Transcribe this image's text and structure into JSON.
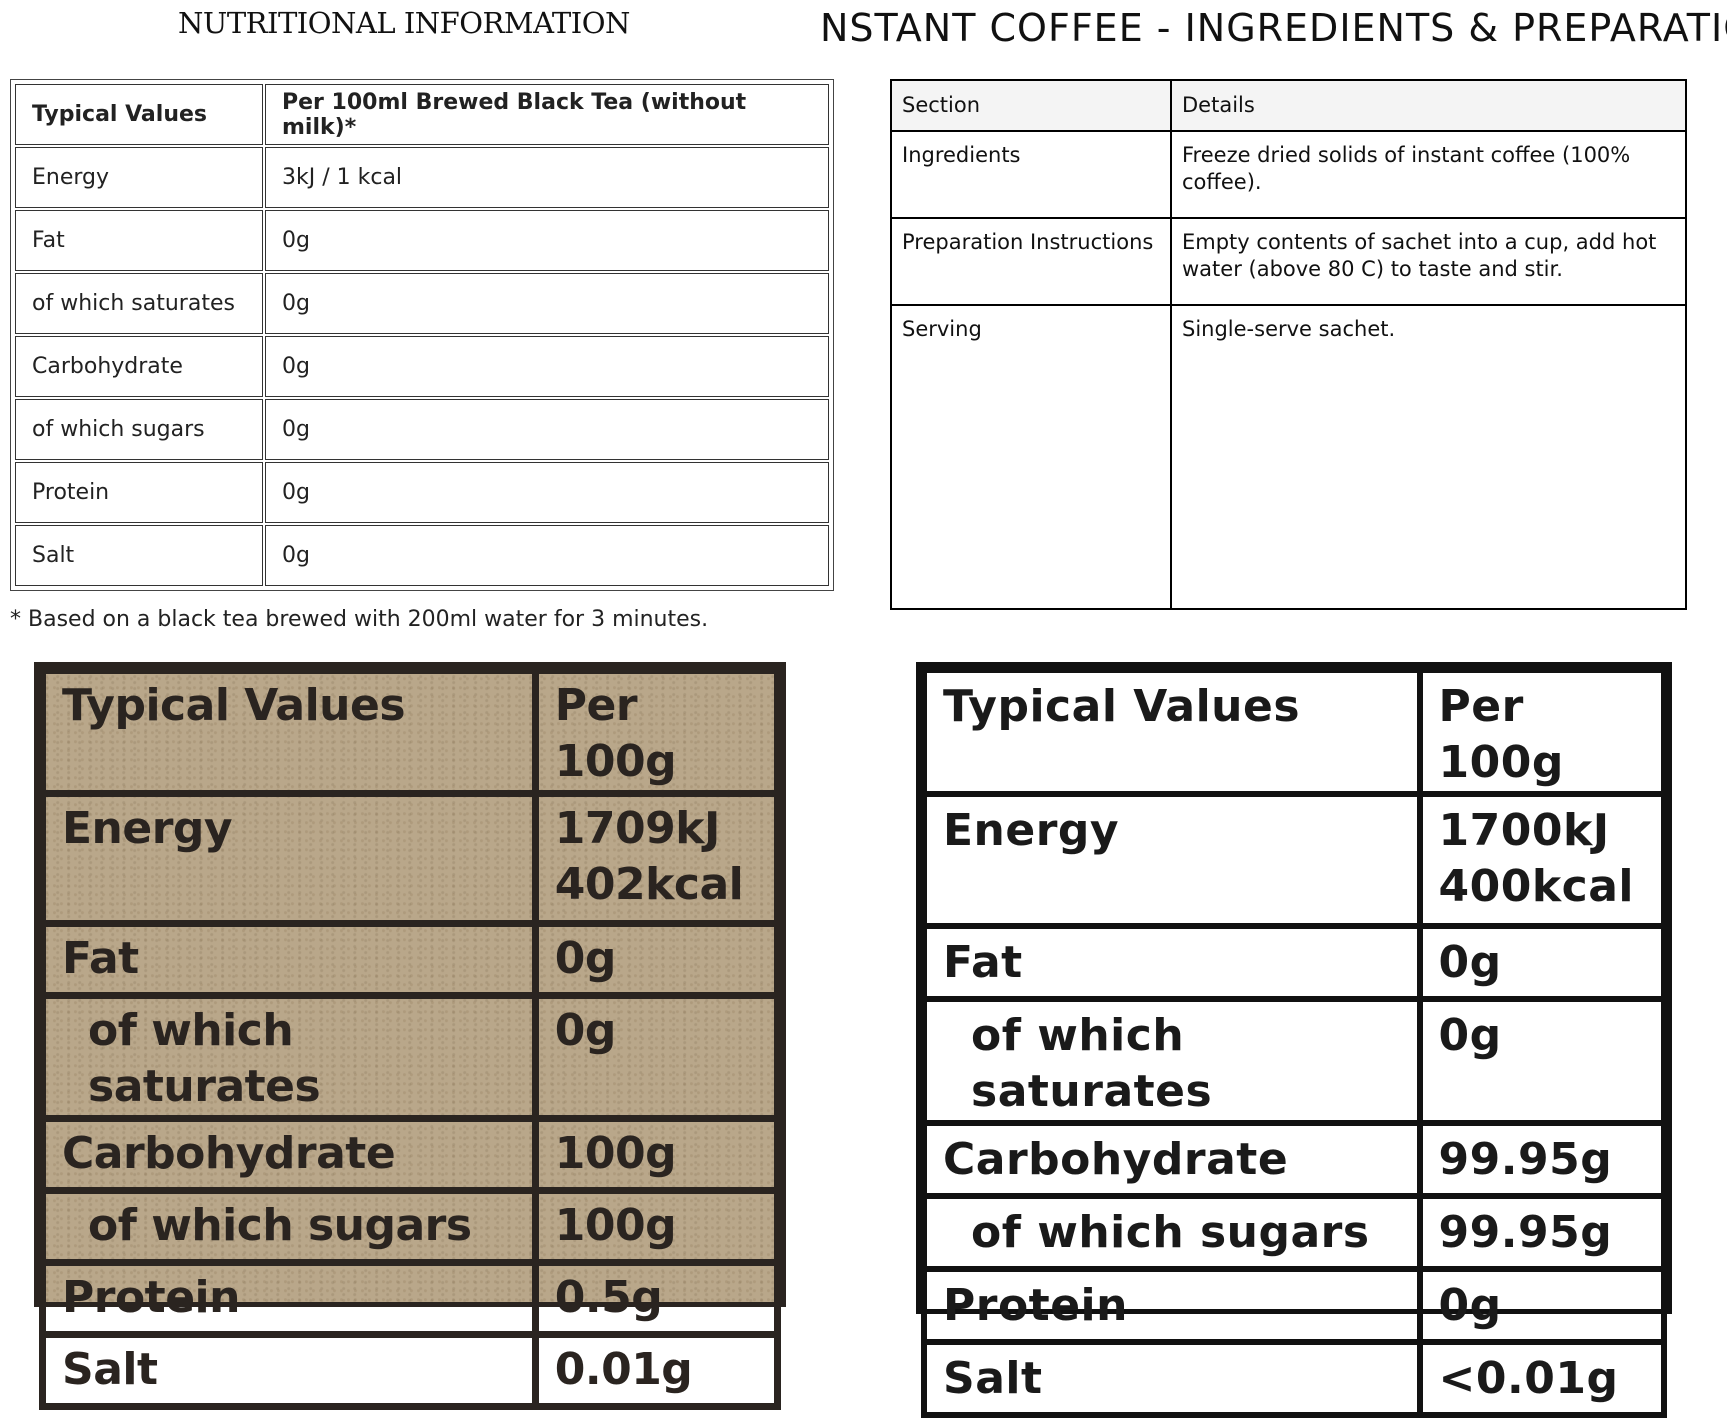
{
  "tea_panel": {
    "title": "NUTRITIONAL INFORMATION",
    "header": [
      "Typical Values",
      "Per 100ml Brewed Black Tea (without milk)*"
    ],
    "rows": [
      [
        "Energy",
        "3kJ / 1 kcal"
      ],
      [
        "Fat",
        "0g"
      ],
      [
        "of which saturates",
        "0g"
      ],
      [
        "Carbohydrate",
        "0g"
      ],
      [
        "of which sugars",
        "0g"
      ],
      [
        "Protein",
        "0g"
      ],
      [
        "Salt",
        "0g"
      ]
    ],
    "footnote": "* Based on a black tea brewed with 200ml water for 3 minutes."
  },
  "coffee_panel": {
    "title": "NSTANT COFFEE - INGREDIENTS & PREPARATIO",
    "header": [
      "Section",
      "Details"
    ],
    "rows": [
      [
        "Ingredients",
        "Freeze dried solids of instant coffee (100% coffee)."
      ],
      [
        "Preparation Instructions",
        "Empty contents of sachet into a cup, add hot water (above 80 C) to taste and stir."
      ],
      [
        "Serving",
        "Single-serve sachet."
      ]
    ]
  },
  "kraft_label": {
    "header": [
      "Typical Values",
      "Per 100g"
    ],
    "energy": [
      "Energy",
      "1709kJ",
      "402kcal"
    ],
    "rows": [
      [
        "Fat",
        "0g"
      ],
      [
        "of which saturates",
        "0g"
      ],
      [
        "Carbohydrate",
        "100g"
      ],
      [
        "of which sugars",
        "100g"
      ],
      [
        "Protein",
        "0.5g"
      ],
      [
        "Salt",
        "0.01g"
      ]
    ]
  },
  "white_label": {
    "header": [
      "Typical Values",
      "Per 100g"
    ],
    "energy": [
      "Energy",
      "1700kJ",
      "400kcal"
    ],
    "rows": [
      [
        "Fat",
        "0g"
      ],
      [
        "of which saturates",
        "0g"
      ],
      [
        "Carbohydrate",
        "99.95g"
      ],
      [
        "of which sugars",
        "99.95g"
      ],
      [
        "Protein",
        "0g"
      ],
      [
        "Salt",
        "<0.01g"
      ]
    ]
  }
}
